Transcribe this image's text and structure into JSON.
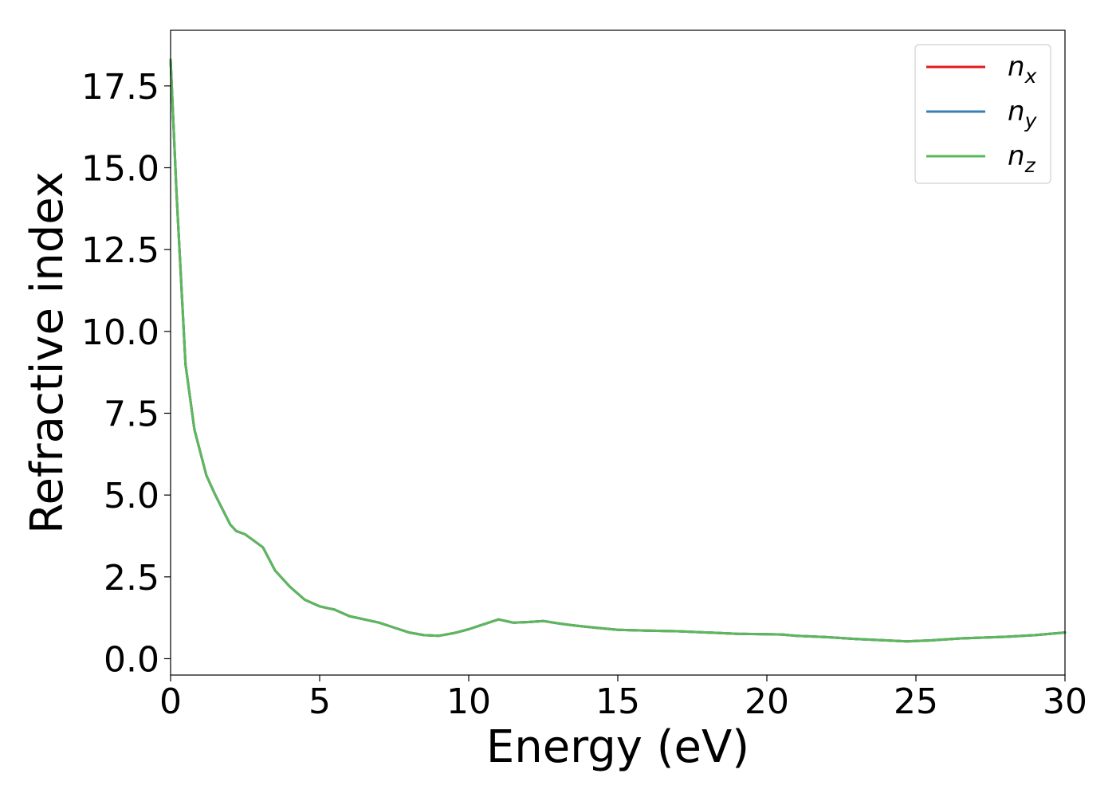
{
  "chart_data": {
    "type": "line",
    "title": "",
    "xlabel": "Energy (eV)",
    "ylabel": "Refractive index",
    "xlim": [
      0,
      30
    ],
    "ylim": [
      -0.5,
      19.2
    ],
    "xticks": [
      0,
      5,
      10,
      15,
      20,
      25,
      30
    ],
    "xtick_labels": [
      "0",
      "5",
      "10",
      "15",
      "20",
      "25",
      "30"
    ],
    "yticks": [
      0,
      2.5,
      5,
      7.5,
      10,
      12.5,
      15,
      17.5
    ],
    "ytick_labels": [
      "0.0",
      "2.5",
      "5.0",
      "7.5",
      "10.0",
      "12.5",
      "15.0",
      "17.5"
    ],
    "grid": false,
    "legend_position": "top-right",
    "x": [
      0,
      0.2,
      0.5,
      0.8,
      1.2,
      1.5,
      2.0,
      2.2,
      2.5,
      2.8,
      3.1,
      3.5,
      4.0,
      4.5,
      5.0,
      5.5,
      6.0,
      6.5,
      7.0,
      7.5,
      8.0,
      8.5,
      9.0,
      9.5,
      10.0,
      10.5,
      11.0,
      11.5,
      12.0,
      12.5,
      13.0,
      13.5,
      14.0,
      15.0,
      16.0,
      17.0,
      18.0,
      19.0,
      20.0,
      20.5,
      21.0,
      22.0,
      23.0,
      24.0,
      24.7,
      25.5,
      26.5,
      28.0,
      29.0,
      30.0
    ],
    "series": [
      {
        "name": "n_x",
        "label_base": "n",
        "label_sub": "x",
        "color": "#e41a1c",
        "values": [
          18.3,
          14.2,
          9.0,
          7.0,
          5.6,
          5.0,
          4.1,
          3.9,
          3.8,
          3.6,
          3.4,
          2.7,
          2.2,
          1.8,
          1.6,
          1.5,
          1.3,
          1.2,
          1.1,
          0.95,
          0.8,
          0.72,
          0.7,
          0.78,
          0.9,
          1.05,
          1.2,
          1.1,
          1.12,
          1.15,
          1.08,
          1.02,
          0.97,
          0.88,
          0.86,
          0.84,
          0.8,
          0.76,
          0.75,
          0.74,
          0.7,
          0.66,
          0.6,
          0.56,
          0.53,
          0.56,
          0.62,
          0.67,
          0.72,
          0.8
        ]
      },
      {
        "name": "n_y",
        "label_base": "n",
        "label_sub": "y",
        "color": "#377eb8",
        "values": [
          18.3,
          14.2,
          9.0,
          7.0,
          5.6,
          5.0,
          4.1,
          3.9,
          3.8,
          3.6,
          3.4,
          2.7,
          2.2,
          1.8,
          1.6,
          1.5,
          1.3,
          1.2,
          1.1,
          0.95,
          0.8,
          0.72,
          0.7,
          0.78,
          0.9,
          1.05,
          1.2,
          1.1,
          1.12,
          1.15,
          1.08,
          1.02,
          0.97,
          0.88,
          0.86,
          0.84,
          0.8,
          0.76,
          0.75,
          0.74,
          0.7,
          0.66,
          0.6,
          0.56,
          0.53,
          0.56,
          0.62,
          0.67,
          0.72,
          0.8
        ]
      },
      {
        "name": "n_z",
        "label_base": "n",
        "label_sub": "z",
        "color": "#5cb85c",
        "values": [
          18.3,
          14.2,
          9.0,
          7.0,
          5.6,
          5.0,
          4.1,
          3.9,
          3.8,
          3.6,
          3.4,
          2.7,
          2.2,
          1.8,
          1.6,
          1.5,
          1.3,
          1.2,
          1.1,
          0.95,
          0.8,
          0.72,
          0.7,
          0.78,
          0.9,
          1.05,
          1.2,
          1.1,
          1.12,
          1.15,
          1.08,
          1.02,
          0.97,
          0.88,
          0.86,
          0.84,
          0.8,
          0.76,
          0.75,
          0.74,
          0.7,
          0.66,
          0.6,
          0.56,
          0.53,
          0.56,
          0.62,
          0.67,
          0.72,
          0.8
        ]
      }
    ]
  }
}
